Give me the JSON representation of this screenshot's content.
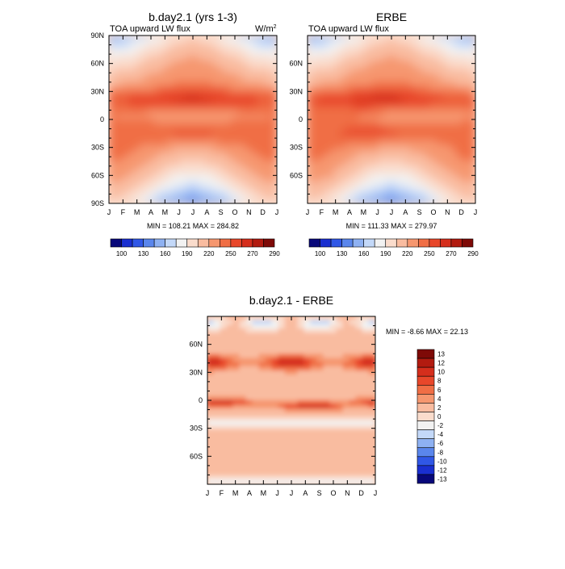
{
  "panels": [
    {
      "title": "b.day2.1 (yrs 1-3)",
      "subtitle": "TOA upward LW flux",
      "units": "W/m",
      "units_sup": "2",
      "stats": "MIN = 108.21 MAX = 284.82"
    },
    {
      "title": "ERBE",
      "subtitle": "TOA upward LW flux",
      "stats": "MIN = 111.33 MAX = 279.97"
    },
    {
      "title": "b.day2.1 - ERBE",
      "stats": "MIN =  -8.66 MAX =  22.13"
    }
  ],
  "chart_data": [
    {
      "type": "heatmap",
      "title": "b.day2.1 (yrs 1-3)",
      "variable": "TOA upward LW flux",
      "units": "W/m2",
      "x": [
        "J",
        "F",
        "M",
        "A",
        "M",
        "J",
        "J",
        "A",
        "S",
        "O",
        "N",
        "D",
        "J"
      ],
      "y_ticks": [
        "90N",
        "60N",
        "30N",
        "0",
        "30S",
        "60S",
        "90S"
      ],
      "min": 108.21,
      "max": 284.82,
      "colorbar": [
        100,
        130,
        160,
        190,
        220,
        250,
        270,
        290
      ]
    },
    {
      "type": "heatmap",
      "title": "ERBE",
      "variable": "TOA upward LW flux",
      "units": "W/m2",
      "x": [
        "J",
        "F",
        "M",
        "A",
        "M",
        "J",
        "J",
        "A",
        "S",
        "O",
        "N",
        "D",
        "J"
      ],
      "y_ticks": [
        "60N",
        "30N",
        "0",
        "30S",
        "60S"
      ],
      "min": 111.33,
      "max": 279.97,
      "colorbar": [
        100,
        130,
        160,
        190,
        220,
        250,
        270,
        290
      ]
    },
    {
      "type": "heatmap",
      "title": "b.day2.1 - ERBE",
      "x": [
        "J",
        "F",
        "M",
        "A",
        "M",
        "J",
        "J",
        "A",
        "S",
        "O",
        "N",
        "D",
        "J"
      ],
      "y_ticks": [
        "60N",
        "30N",
        "0",
        "30S",
        "60S"
      ],
      "min": -8.66,
      "max": 22.13,
      "colorbar": [
        13,
        12,
        10,
        8,
        6,
        4,
        2,
        0,
        -2,
        -4,
        -6,
        -8,
        -10,
        -12,
        -13
      ]
    }
  ],
  "colors": {
    "flux": [
      "#08087a",
      "#1a2fd0",
      "#3057e6",
      "#5a86ec",
      "#8eb1f2",
      "#c3d8f8",
      "#f2f2f2",
      "#fadccc",
      "#f9bca0",
      "#f6976f",
      "#f06e45",
      "#e8472a",
      "#d52e1c",
      "#b21b10",
      "#7e0a07"
    ],
    "diff": [
      "#7e0a07",
      "#b21b10",
      "#d52e1c",
      "#e8472a",
      "#f06e45",
      "#f6976f",
      "#f9bca0",
      "#fadccc",
      "#f2f2f2",
      "#c3d8f8",
      "#8eb1f2",
      "#5a86ec",
      "#3057e6",
      "#1a2fd0",
      "#08087a"
    ]
  }
}
